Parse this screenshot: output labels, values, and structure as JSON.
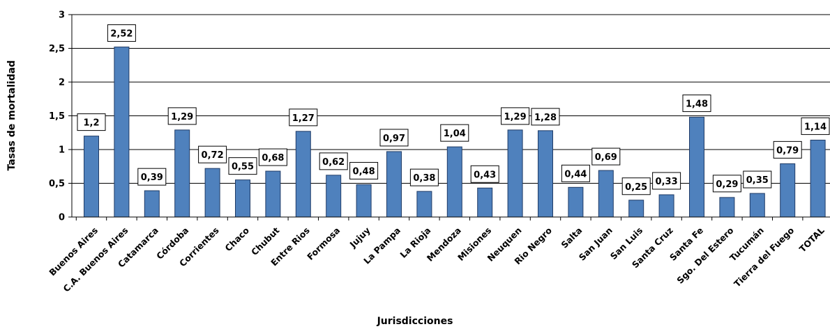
{
  "chart_data": {
    "type": "bar",
    "title": "",
    "xlabel": "Jurisdicciones",
    "ylabel": "Tasas de mortalidad",
    "ylim": [
      0,
      3
    ],
    "yticks": [
      0,
      0.5,
      1,
      1.5,
      2,
      2.5,
      3
    ],
    "ytick_labels": [
      "0",
      "0,5",
      "1",
      "1,5",
      "2",
      "2,5",
      "3"
    ],
    "grid": true,
    "legend": "none",
    "bar_color": "#4f81bd",
    "categories": [
      "Buenos Aires",
      "C.A. Buenos Aires",
      "Catamarca",
      "Córdoba",
      "Corrientes",
      "Chaco",
      "Chubut",
      "Entre Rios",
      "Formosa",
      "Jujuy",
      "La Pampa",
      "La Rioja",
      "Mendoza",
      "Misiones",
      "Neuquen",
      "Rio Negro",
      "Salta",
      "San Juan",
      "San Luis",
      "Santa Cruz",
      "Santa Fe",
      "Sgo. Del Estero",
      "Tucumán",
      "Tierra del Fuego",
      "TOTAL"
    ],
    "values": [
      1.2,
      2.52,
      0.39,
      1.29,
      0.72,
      0.55,
      0.68,
      1.27,
      0.62,
      0.48,
      0.97,
      0.38,
      1.04,
      0.43,
      1.29,
      1.28,
      0.44,
      0.69,
      0.25,
      0.33,
      1.48,
      0.29,
      0.35,
      0.79,
      1.14
    ],
    "data_labels": [
      "1,2",
      "2,52",
      "0,39",
      "1,29",
      "0,72",
      "0,55",
      "0,68",
      "1,27",
      "0,62",
      "0,48",
      "0,97",
      "0,38",
      "1,04",
      "0,43",
      "1,29",
      "1,28",
      "0,44",
      "0,69",
      "0,25",
      "0,33",
      "1,48",
      "0,29",
      "0,35",
      "0,79",
      "1,14"
    ]
  }
}
